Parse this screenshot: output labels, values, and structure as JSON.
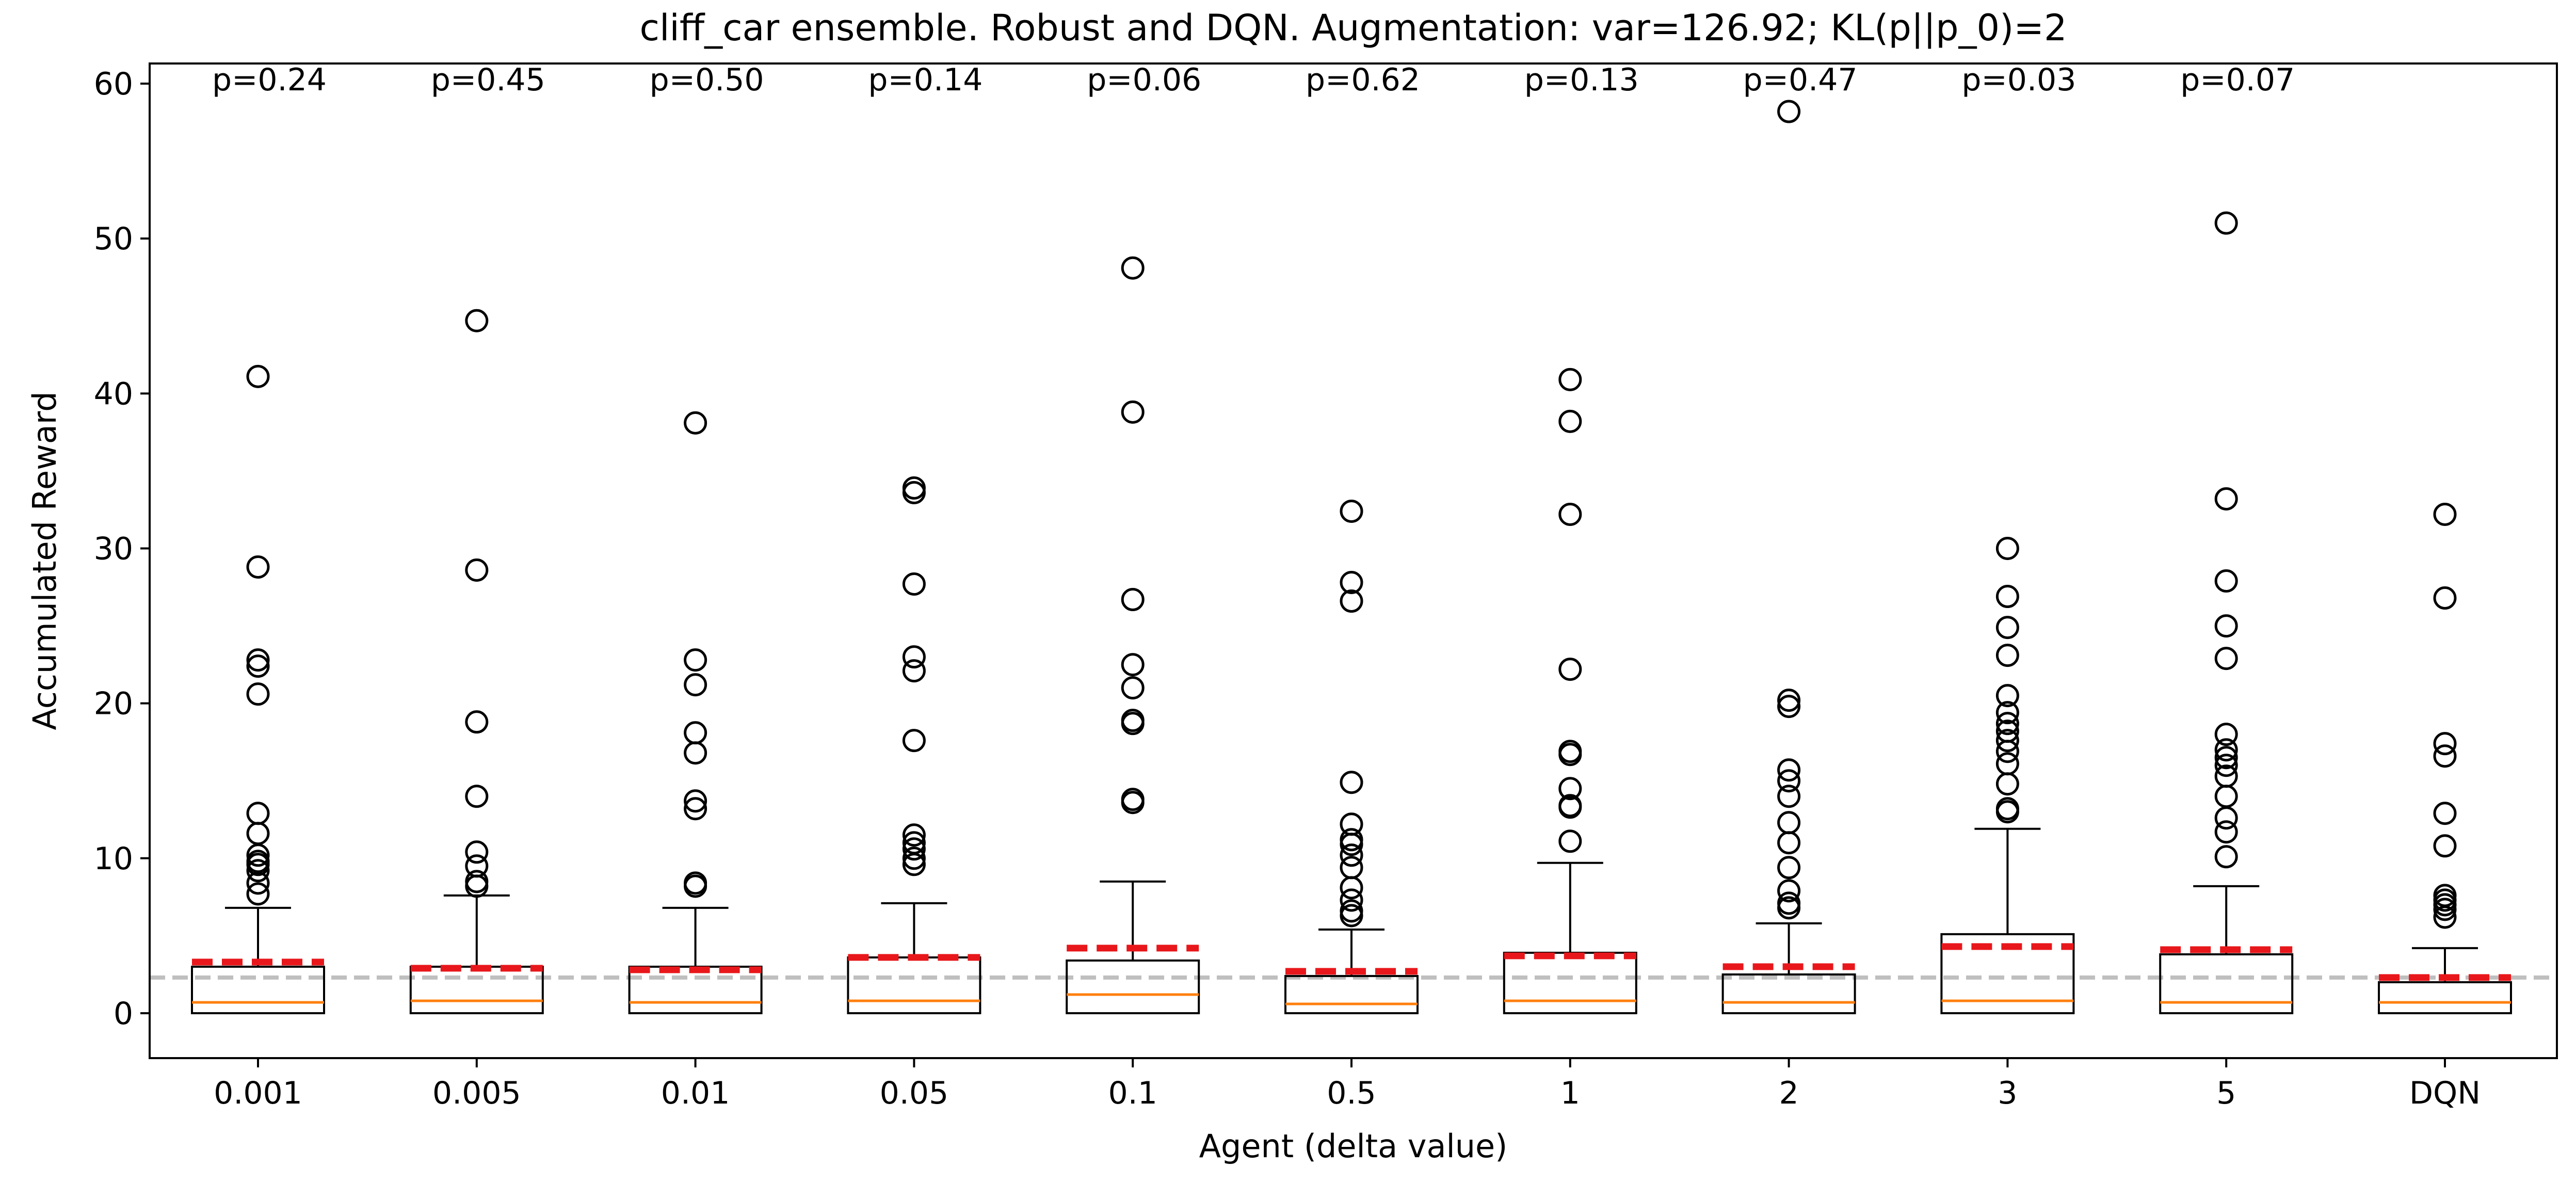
{
  "chart_data": {
    "type": "box",
    "title": "cliff_car ensemble. Robust and DQN. Augmentation: var=126.92; KL(p||p_0)=2",
    "xlabel": "Agent (delta value)",
    "ylabel": "Accumulated Reward",
    "ylim": [
      -2.9,
      61.3
    ],
    "yticks": [
      0,
      10,
      20,
      30,
      40,
      50,
      60
    ],
    "grid": false,
    "reference_line": {
      "value": 2.3,
      "style": "dashed",
      "color": "#bfbfbf"
    },
    "colors": {
      "box": "#000000",
      "median": "#ff7f0e",
      "mean": "#e8171b",
      "reference": "#bfbfbf"
    },
    "groups": [
      {
        "label": "0.001",
        "p_label": "p=0.24",
        "q1": 0,
        "median": 0.7,
        "q3": 3.0,
        "whisker_low": 0,
        "whisker_high": 6.8,
        "mean": 3.3,
        "outliers": [
          7.7,
          8.4,
          9.2,
          9.6,
          9.8,
          10.2,
          11.6,
          12.9,
          20.6,
          22.4,
          22.8,
          28.8,
          41.1
        ]
      },
      {
        "label": "0.005",
        "p_label": "p=0.45",
        "q1": 0,
        "median": 0.8,
        "q3": 3.0,
        "whisker_low": 0,
        "whisker_high": 7.6,
        "mean": 2.9,
        "outliers": [
          8.2,
          8.5,
          9.5,
          10.4,
          14.0,
          18.8,
          28.6,
          44.7
        ]
      },
      {
        "label": "0.01",
        "p_label": "p=0.50",
        "q1": 0,
        "median": 0.7,
        "q3": 3.0,
        "whisker_low": 0,
        "whisker_high": 6.8,
        "mean": 2.8,
        "outliers": [
          8.2,
          8.4,
          13.2,
          13.7,
          16.8,
          18.1,
          21.2,
          22.8,
          38.1
        ]
      },
      {
        "label": "0.05",
        "p_label": "p=0.14",
        "q1": 0,
        "median": 0.8,
        "q3": 3.6,
        "whisker_low": 0,
        "whisker_high": 7.1,
        "mean": 3.6,
        "outliers": [
          9.6,
          10.0,
          10.6,
          11.0,
          11.5,
          17.6,
          22.1,
          23.0,
          27.7,
          33.6,
          33.9
        ]
      },
      {
        "label": "0.1",
        "p_label": "p=0.06",
        "q1": 0,
        "median": 1.2,
        "q3": 3.4,
        "whisker_low": 0,
        "whisker_high": 8.5,
        "mean": 4.2,
        "outliers": [
          13.6,
          13.8,
          18.7,
          18.9,
          21.0,
          22.5,
          26.7,
          38.8,
          48.1
        ]
      },
      {
        "label": "0.5",
        "p_label": "p=0.62",
        "q1": 0,
        "median": 0.6,
        "q3": 2.4,
        "whisker_low": 0,
        "whisker_high": 5.4,
        "mean": 2.7,
        "outliers": [
          6.3,
          6.6,
          7.3,
          8.1,
          9.4,
          10.2,
          10.9,
          11.2,
          12.2,
          14.9,
          26.6,
          27.8,
          32.4
        ]
      },
      {
        "label": "1",
        "p_label": "p=0.13",
        "q1": 0,
        "median": 0.8,
        "q3": 3.9,
        "whisker_low": 0,
        "whisker_high": 9.7,
        "mean": 3.7,
        "outliers": [
          11.1,
          13.3,
          13.4,
          14.5,
          16.7,
          16.9,
          22.2,
          32.2,
          38.2,
          40.9
        ]
      },
      {
        "label": "2",
        "p_label": "p=0.47",
        "q1": 0,
        "median": 0.7,
        "q3": 2.5,
        "whisker_low": 0,
        "whisker_high": 5.8,
        "mean": 3.0,
        "outliers": [
          6.8,
          7.1,
          7.9,
          9.4,
          11.0,
          12.3,
          14.0,
          15.0,
          15.7,
          19.8,
          20.2,
          58.2
        ]
      },
      {
        "label": "3",
        "p_label": "p=0.03",
        "q1": 0,
        "median": 0.8,
        "q3": 5.1,
        "whisker_low": 0,
        "whisker_high": 11.9,
        "mean": 4.3,
        "outliers": [
          13.0,
          13.2,
          14.8,
          16.1,
          16.9,
          17.6,
          18.2,
          18.7,
          19.4,
          20.5,
          23.1,
          24.9,
          26.9,
          30.0
        ]
      },
      {
        "label": "5",
        "p_label": "p=0.07",
        "q1": 0,
        "median": 0.7,
        "q3": 3.8,
        "whisker_low": 0,
        "whisker_high": 8.2,
        "mean": 4.1,
        "outliers": [
          10.1,
          11.7,
          12.6,
          14.0,
          15.3,
          16.0,
          16.5,
          17.0,
          18.0,
          22.9,
          25.0,
          27.9,
          33.2,
          51.0
        ]
      },
      {
        "label": "DQN",
        "p_label": "",
        "q1": 0,
        "median": 0.7,
        "q3": 2.0,
        "whisker_low": 0,
        "whisker_high": 4.2,
        "mean": 2.3,
        "outliers": [
          6.2,
          6.7,
          7.0,
          7.3,
          7.6,
          10.8,
          12.9,
          16.6,
          17.4,
          26.8,
          32.2
        ]
      }
    ]
  }
}
